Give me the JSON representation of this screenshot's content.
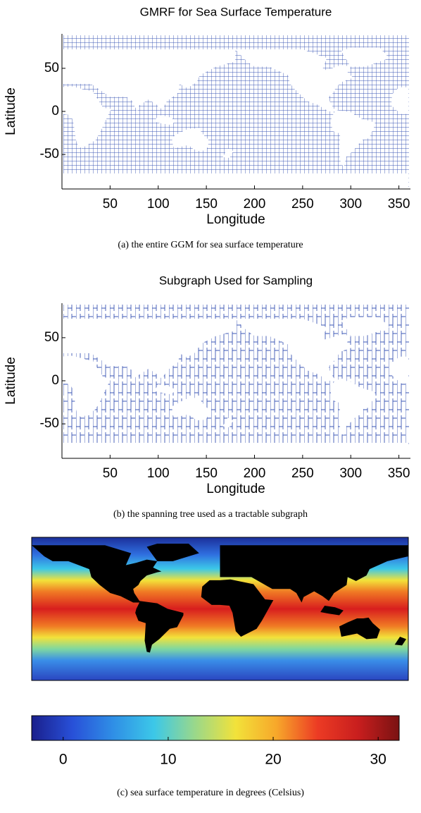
{
  "chart_data": [
    {
      "type": "grid-map",
      "style": "mesh",
      "title": "GMRF for Sea Surface Temperature",
      "xlabel": "Longitude",
      "ylabel": "Latitude",
      "xlim": [
        0,
        362
      ],
      "ylim": [
        -90,
        90
      ],
      "xticks": [
        50,
        100,
        150,
        200,
        250,
        300,
        350
      ],
      "yticks": [
        50,
        0,
        -50
      ],
      "color": "#3a55b4",
      "caption": "(a) the entire GGM for sea surface temperature"
    },
    {
      "type": "grid-map",
      "style": "tree",
      "title": "Subgraph Used for Sampling",
      "xlabel": "Longitude",
      "ylabel": "Latitude",
      "xlim": [
        0,
        362
      ],
      "ylim": [
        -90,
        90
      ],
      "xticks": [
        50,
        100,
        150,
        200,
        250,
        300,
        350
      ],
      "yticks": [
        50,
        0,
        -50
      ],
      "color": "#3a55b4",
      "caption": "(b) the spanning tree used as a tractable subgraph"
    },
    {
      "type": "colorbar",
      "xlim": [
        -3,
        32
      ],
      "xticks": [
        0,
        10,
        20,
        30
      ],
      "colors": [
        "#1a1f8c",
        "#2850d8",
        "#2f8fe6",
        "#3cc8e8",
        "#9ad88a",
        "#f2e23a",
        "#f7a72a",
        "#ec3b24",
        "#c81e1e",
        "#7a1212"
      ],
      "caption": "(c) sea surface temperature in degrees (Celsius)"
    }
  ]
}
